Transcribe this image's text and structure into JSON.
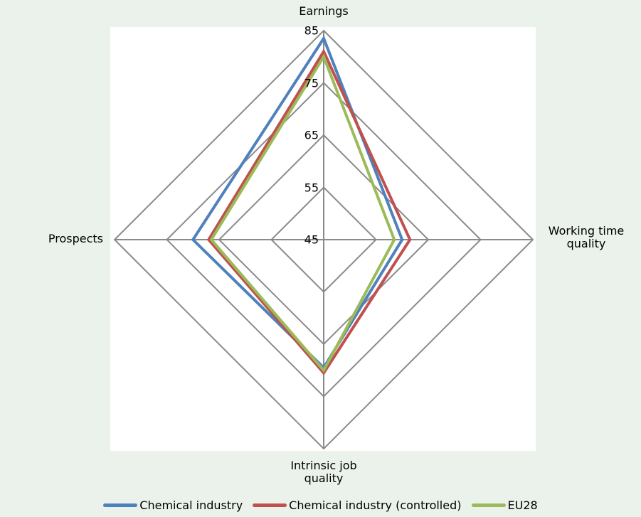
{
  "background_color": "#ebf2ec",
  "plot_background_color": "#ffffff",
  "chart_data": {
    "type": "radar",
    "categories": [
      "Earnings",
      "Working time quality",
      "Intrinsic job quality",
      "Prospects"
    ],
    "series": [
      {
        "name": "Chemical industry",
        "color": "#4f81bd",
        "values": [
          83.5,
          60,
          69.5,
          70
        ]
      },
      {
        "name": "Chemical industry (controlled)",
        "color": "#c0504d",
        "values": [
          81,
          61.5,
          70.5,
          67
        ]
      },
      {
        "name": "EU28",
        "color": "#9bbb59",
        "values": [
          80,
          58.5,
          70,
          66.5
        ]
      }
    ],
    "scale": {
      "min": 45,
      "max": 85,
      "step": 10,
      "ticks": [
        45,
        55,
        65,
        75,
        85
      ]
    },
    "grid_color": "#8a8a8a",
    "grid_on": true,
    "legend_position": "bottom"
  }
}
